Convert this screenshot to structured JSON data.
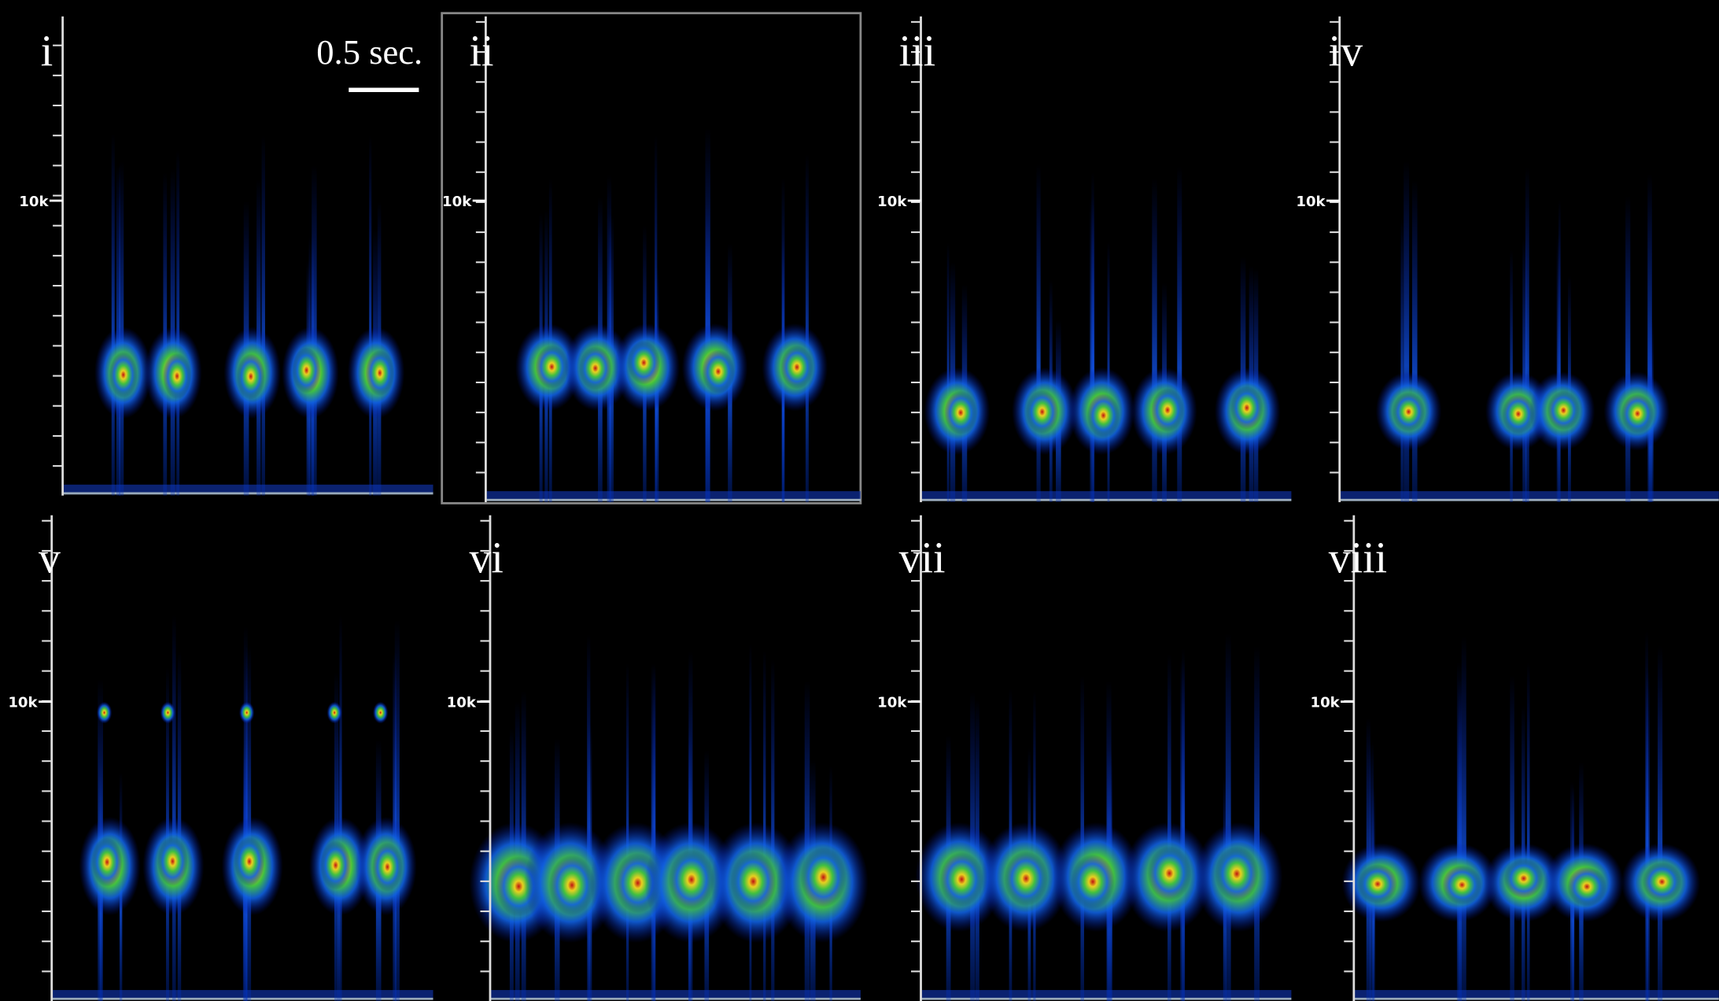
{
  "scale_bar": {
    "label": "0.5 sec."
  },
  "panels": [
    {
      "label": "i",
      "tick_label": "10k"
    },
    {
      "label": "ii",
      "tick_label": "10k"
    },
    {
      "label": "iii",
      "tick_label": "10k"
    },
    {
      "label": "iv",
      "tick_label": "10k"
    },
    {
      "label": "v",
      "tick_label": "10k"
    },
    {
      "label": "vi",
      "tick_label": "10k"
    },
    {
      "label": "vii",
      "tick_label": "10k"
    },
    {
      "label": "viii",
      "tick_label": "10k"
    }
  ]
}
